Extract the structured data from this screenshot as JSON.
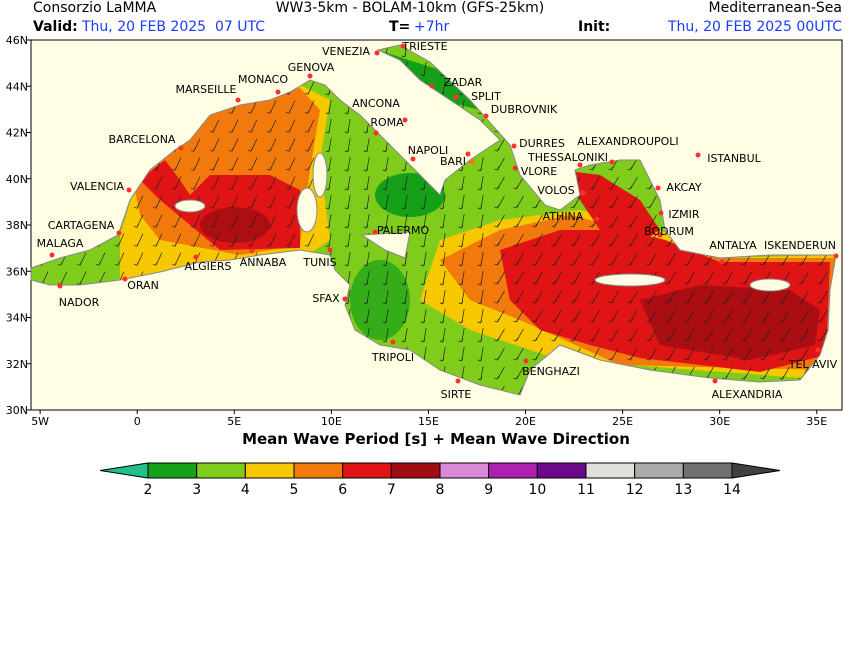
{
  "header": {
    "left": "Consorzio LaMMA",
    "center": "WW3-5km - BOLAM-10km (GFS-25km)",
    "right": "Mediterranean-Sea",
    "valid_label": "Valid:",
    "valid_value": "Thu, 20 FEB 2025  07 UTC",
    "t_label": "T=",
    "t_value": "+7hr",
    "init_label": "Init:",
    "init_value": "Thu, 20 FEB 2025 00UTC"
  },
  "map": {
    "title": "Mean Wave Period [s] + Mean Wave Direction",
    "xlim": [
      -5.47,
      36.3
    ],
    "ylim": [
      30,
      46
    ],
    "xticks": [
      {
        "value": -5,
        "label": "5W"
      },
      0,
      {
        "value": 5,
        "label": "5E"
      },
      {
        "value": 10,
        "label": "10E"
      },
      {
        "value": 15,
        "label": "15E"
      },
      {
        "value": 20,
        "label": "20E"
      },
      {
        "value": 25,
        "label": "25E"
      },
      {
        "value": 30,
        "label": "30E"
      },
      {
        "value": 35,
        "label": "35E"
      }
    ],
    "yticks": [
      {
        "value": 30,
        "label": "30N"
      },
      {
        "value": 32,
        "label": "32N"
      },
      {
        "value": 34,
        "label": "34N"
      },
      {
        "value": 36,
        "label": "36N"
      },
      {
        "value": 38,
        "label": "38N"
      },
      {
        "value": 40,
        "label": "40N"
      },
      {
        "value": 42,
        "label": "42N"
      },
      {
        "value": 44,
        "label": "44N"
      },
      {
        "value": 46,
        "label": "46N"
      }
    ],
    "cities": [
      "VENEZIA",
      "TRIESTE",
      "GENOVA",
      "MONACO",
      "MARSEILLE",
      "ZADAR",
      "SPLIT",
      "ANCONA",
      "DUBROVNIK",
      "ROMA",
      "BARCELONA",
      "DURRES",
      "ALEXANDROUPOLI",
      "THESSALONIKI",
      "NAPOLI",
      "BARI",
      "ISTANBUL",
      "VLORE",
      "VALENCIA",
      "VOLOS",
      "AKCAY",
      "ATHINA",
      "IZMIR",
      "PALERMO",
      "BODRUM",
      "CARTAGENA",
      "MALAGA",
      "ANTALYA",
      "ISKENDERUN",
      "ALGIERS",
      "ANNABA",
      "TUNIS",
      "ORAN",
      "NADOR",
      "SFAX",
      "TRIPOLI",
      "BENGHAZI",
      "TEL AVIV",
      "ALEXANDRIA",
      "SIRTE"
    ]
  },
  "legend": {
    "levels": [
      2,
      3,
      4,
      5,
      6,
      7,
      8,
      9,
      10,
      11,
      12,
      13,
      14
    ],
    "under_color": "#20c088",
    "over_color": "#404040",
    "colors": [
      "#16a01a",
      "#7fcc1a",
      "#f7c800",
      "#f27a0c",
      "#e01414",
      "#a00c12",
      "#dc88d8",
      "#b020b0",
      "#6a0a8a",
      "#e0e0da",
      "#ababab",
      "#707070"
    ]
  }
}
